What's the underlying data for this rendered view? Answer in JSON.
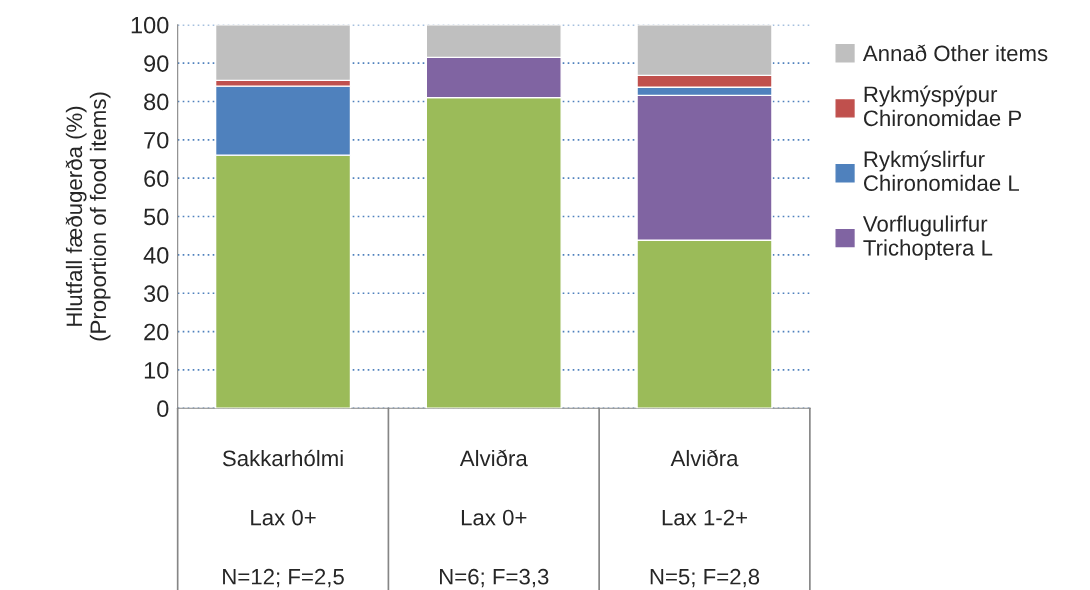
{
  "chart_data": {
    "type": "bar",
    "stacked": true,
    "ylabel": "Hlutfall fæðugerða (%)\n(Proportion of food items)",
    "categories": [
      "Sakkarhólmi\n\nLax 0+\n\nN=12; F=2,5",
      "Alviðra\n\nLax 0+\n\nN=6; F=3,3",
      "Alviðra\n\nLax 1-2+\n\nN=5; F=2,8"
    ],
    "series": [
      {
        "color": "#9bbb59",
        "values": [
          66,
          81,
          43.8
        ]
      },
      {
        "name": "Vorflugulirfur\nTrichoptera L",
        "color": "#8064a2",
        "values": [
          0,
          10.5,
          37.8
        ]
      },
      {
        "name": "Rykmýslirfur\nChironomidae L",
        "color": "#4f81bd",
        "values": [
          18,
          0,
          2.1
        ]
      },
      {
        "name": "Rykmýspýpur\nChironomidae P",
        "color": "#c0504d",
        "values": [
          1.5,
          0,
          3.1
        ]
      },
      {
        "name": "Annað Other items",
        "color": "#bfbfbf",
        "values": [
          14.5,
          8.5,
          13.2
        ]
      }
    ],
    "ylim": [
      0,
      100
    ],
    "yticks": [
      0,
      10,
      20,
      30,
      40,
      50,
      60,
      70,
      80,
      90,
      100
    ],
    "grid": "y",
    "legend": "right"
  }
}
